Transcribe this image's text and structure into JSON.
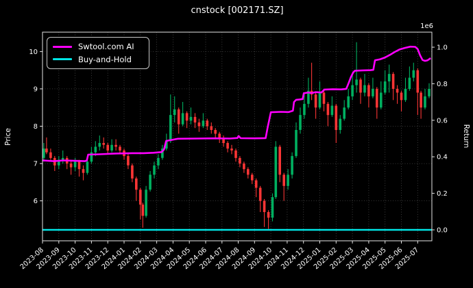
{
  "window": {
    "title": "cnstock [002171.SZ]"
  },
  "chart_data": {
    "type": "candlestick+line",
    "title": "cnstock [002171.SZ]",
    "grid": true,
    "background": "#000000",
    "left_axis": {
      "label": "Price",
      "ticks": [
        6,
        7,
        8,
        9,
        10
      ],
      "range": [
        4.93,
        10.52
      ]
    },
    "right_axis": {
      "label": "Return",
      "ticks": [
        "0.0",
        "0.2",
        "0.4",
        "0.6",
        "0.8",
        "1.0"
      ],
      "multiplier": "1e6",
      "range": [
        -0.0599,
        1.0824
      ]
    },
    "x_axis": {
      "range": [
        0,
        23.87
      ],
      "tick_labels": [
        "2023-08",
        "2023-09",
        "2023-10",
        "2023-11",
        "2023-12",
        "2024-01",
        "2024-02",
        "2024-03",
        "2024-04",
        "2024-05",
        "2024-06",
        "2024-07",
        "2024-08",
        "2024-09",
        "2024-10",
        "2024-11",
        "2024-12",
        "2025-01",
        "2025-02",
        "2025-03",
        "2025-04",
        "2025-05",
        "2025-06",
        "2025-07"
      ]
    },
    "legend": {
      "position": "upper-left",
      "items": [
        {
          "label": "Swtool.com AI",
          "color": "#ff00ff"
        },
        {
          "label": "Buy-and-Hold",
          "color": "#00e6e6"
        }
      ]
    },
    "colors": {
      "up_candle": "#00b060",
      "down_candle": "#fb3535",
      "ai_line": "#ff00ff",
      "bh_line": "#00e6e6",
      "grid": "#4a4a4a",
      "spine": "#e6e6e6",
      "text": "#ffffff"
    },
    "candles": [
      [
        0.08,
        7.15,
        7.55,
        7.05,
        7.4
      ],
      [
        0.25,
        7.4,
        7.7,
        7.25,
        7.3
      ],
      [
        0.5,
        7.3,
        7.4,
        7.1,
        7.15
      ],
      [
        0.75,
        7.15,
        7.2,
        6.8,
        6.95
      ],
      [
        1.0,
        6.95,
        7.2,
        6.85,
        7.1
      ],
      [
        1.25,
        7.1,
        7.35,
        7.0,
        7.15
      ],
      [
        1.5,
        7.15,
        7.2,
        6.85,
        7.0
      ],
      [
        1.75,
        7.0,
        7.1,
        6.7,
        6.9
      ],
      [
        2.0,
        6.9,
        7.15,
        6.8,
        7.05
      ],
      [
        2.25,
        7.05,
        7.1,
        6.65,
        6.85
      ],
      [
        2.5,
        6.85,
        6.95,
        6.55,
        6.75
      ],
      [
        2.75,
        6.75,
        7.1,
        6.7,
        7.05
      ],
      [
        3.0,
        7.05,
        7.45,
        7.0,
        7.3
      ],
      [
        3.25,
        7.3,
        7.6,
        7.2,
        7.45
      ],
      [
        3.5,
        7.45,
        7.75,
        7.35,
        7.55
      ],
      [
        3.75,
        7.55,
        7.7,
        7.4,
        7.5
      ],
      [
        4.0,
        7.5,
        7.55,
        7.25,
        7.35
      ],
      [
        4.25,
        7.35,
        7.65,
        7.3,
        7.5
      ],
      [
        4.5,
        7.5,
        7.65,
        7.35,
        7.45
      ],
      [
        4.75,
        7.45,
        7.5,
        7.25,
        7.35
      ],
      [
        5.0,
        7.35,
        7.4,
        7.1,
        7.2
      ],
      [
        5.25,
        7.2,
        7.25,
        6.85,
        6.95
      ],
      [
        5.5,
        6.95,
        7.0,
        6.5,
        6.6
      ],
      [
        5.75,
        6.6,
        6.65,
        6.0,
        6.3
      ],
      [
        6.0,
        6.3,
        6.35,
        5.5,
        5.9
      ],
      [
        6.15,
        5.9,
        5.95,
        5.28,
        5.6
      ],
      [
        6.35,
        5.6,
        6.4,
        5.55,
        6.3
      ],
      [
        6.6,
        6.3,
        6.8,
        6.25,
        6.7
      ],
      [
        6.85,
        6.7,
        7.05,
        6.6,
        6.95
      ],
      [
        7.1,
        6.95,
        7.25,
        6.85,
        7.15
      ],
      [
        7.35,
        7.15,
        7.5,
        7.1,
        7.4
      ],
      [
        7.6,
        7.4,
        7.8,
        7.35,
        7.6
      ],
      [
        7.85,
        7.6,
        8.85,
        7.55,
        8.3
      ],
      [
        8.1,
        8.3,
        8.8,
        8.1,
        8.45
      ],
      [
        8.35,
        8.45,
        8.5,
        7.8,
        8.05
      ],
      [
        8.6,
        8.05,
        8.65,
        8.0,
        8.35
      ],
      [
        8.85,
        8.35,
        8.4,
        7.95,
        8.15
      ],
      [
        9.1,
        8.15,
        8.5,
        8.05,
        8.25
      ],
      [
        9.35,
        8.25,
        8.35,
        7.95,
        8.1
      ],
      [
        9.6,
        8.1,
        8.2,
        7.85,
        8.0
      ],
      [
        9.85,
        8.0,
        8.35,
        7.95,
        8.15
      ],
      [
        10.1,
        8.15,
        8.2,
        7.9,
        8.0
      ],
      [
        10.35,
        8.0,
        8.1,
        7.8,
        7.9
      ],
      [
        10.6,
        7.9,
        7.95,
        7.65,
        7.8
      ],
      [
        10.85,
        7.8,
        7.85,
        7.55,
        7.65
      ],
      [
        11.1,
        7.65,
        7.75,
        7.45,
        7.55
      ],
      [
        11.35,
        7.55,
        7.6,
        7.3,
        7.4
      ],
      [
        11.6,
        7.4,
        7.5,
        7.25,
        7.35
      ],
      [
        11.85,
        7.35,
        7.4,
        7.05,
        7.15
      ],
      [
        12.1,
        7.15,
        7.2,
        6.9,
        7.0
      ],
      [
        12.35,
        7.0,
        7.05,
        6.75,
        6.85
      ],
      [
        12.6,
        6.85,
        6.9,
        6.6,
        6.7
      ],
      [
        12.85,
        6.7,
        6.75,
        6.45,
        6.55
      ],
      [
        13.1,
        6.55,
        6.6,
        6.1,
        6.35
      ],
      [
        13.35,
        6.35,
        6.4,
        5.7,
        6.0
      ],
      [
        13.6,
        6.0,
        6.05,
        5.3,
        5.7
      ],
      [
        13.85,
        5.7,
        5.75,
        5.25,
        5.55
      ],
      [
        14.1,
        5.55,
        6.2,
        5.45,
        6.1
      ],
      [
        14.3,
        6.1,
        7.6,
        6.05,
        7.45
      ],
      [
        14.55,
        7.45,
        7.5,
        6.5,
        6.7
      ],
      [
        14.8,
        6.7,
        6.75,
        6.0,
        6.4
      ],
      [
        15.05,
        6.4,
        6.85,
        6.3,
        6.7
      ],
      [
        15.3,
        6.7,
        7.3,
        6.6,
        7.2
      ],
      [
        15.55,
        7.2,
        8.1,
        7.15,
        7.9
      ],
      [
        15.8,
        7.9,
        8.5,
        7.8,
        8.3
      ],
      [
        16.05,
        8.3,
        8.9,
        8.2,
        8.6
      ],
      [
        16.3,
        8.6,
        9.3,
        8.5,
        8.95
      ],
      [
        16.5,
        8.95,
        9.7,
        8.7,
        8.85
      ],
      [
        16.75,
        8.85,
        8.9,
        8.2,
        8.5
      ],
      [
        17.0,
        8.5,
        9.2,
        8.45,
        8.9
      ],
      [
        17.25,
        8.9,
        8.95,
        8.4,
        8.6
      ],
      [
        17.5,
        8.6,
        8.65,
        8.0,
        8.3
      ],
      [
        17.75,
        8.3,
        8.8,
        8.25,
        8.55
      ],
      [
        18.0,
        8.55,
        8.6,
        7.55,
        7.9
      ],
      [
        18.25,
        7.9,
        8.3,
        7.8,
        8.2
      ],
      [
        18.5,
        8.2,
        8.7,
        8.15,
        8.5
      ],
      [
        18.75,
        8.5,
        9.0,
        8.45,
        8.8
      ],
      [
        19.0,
        8.8,
        9.4,
        8.7,
        9.1
      ],
      [
        19.25,
        9.1,
        10.25,
        8.9,
        9.25
      ],
      [
        19.5,
        9.25,
        9.3,
        8.6,
        8.9
      ],
      [
        19.75,
        8.9,
        9.4,
        8.8,
        9.1
      ],
      [
        20.0,
        9.1,
        9.15,
        8.5,
        8.8
      ],
      [
        20.25,
        8.8,
        9.3,
        8.75,
        9.0
      ],
      [
        20.5,
        9.0,
        9.05,
        8.2,
        8.5
      ],
      [
        20.75,
        8.5,
        9.2,
        8.45,
        8.9
      ],
      [
        21.0,
        8.9,
        9.5,
        8.85,
        9.2
      ],
      [
        21.25,
        9.2,
        9.65,
        8.9,
        9.4
      ],
      [
        21.5,
        9.4,
        9.45,
        8.7,
        9.0
      ],
      [
        21.75,
        9.0,
        9.1,
        8.6,
        8.9
      ],
      [
        22.0,
        8.9,
        8.95,
        8.4,
        8.7
      ],
      [
        22.25,
        8.7,
        9.3,
        8.65,
        9.0
      ],
      [
        22.5,
        9.0,
        9.6,
        8.95,
        9.3
      ],
      [
        22.75,
        9.3,
        9.7,
        9.2,
        9.5
      ],
      [
        23.0,
        9.5,
        9.55,
        8.3,
        8.9
      ],
      [
        23.2,
        8.9,
        8.95,
        8.2,
        8.5
      ],
      [
        23.45,
        8.5,
        9.0,
        8.45,
        8.8
      ],
      [
        23.7,
        8.8,
        9.15,
        8.75,
        9.0
      ]
    ],
    "series": [
      {
        "name": "Swtool.com AI",
        "color": "#ff00ff",
        "axis": "right",
        "points": [
          [
            0.0,
            0.38
          ],
          [
            0.7,
            0.376
          ],
          [
            1.3,
            0.38
          ],
          [
            2.0,
            0.378
          ],
          [
            2.6,
            0.376
          ],
          [
            2.72,
            0.38
          ],
          [
            2.8,
            0.412
          ],
          [
            3.5,
            0.414
          ],
          [
            4.5,
            0.418
          ],
          [
            5.5,
            0.42
          ],
          [
            6.2,
            0.42
          ],
          [
            6.8,
            0.422
          ],
          [
            7.3,
            0.426
          ],
          [
            7.45,
            0.44
          ],
          [
            7.58,
            0.487
          ],
          [
            7.9,
            0.492
          ],
          [
            8.3,
            0.499
          ],
          [
            9.5,
            0.5
          ],
          [
            10.5,
            0.501
          ],
          [
            11.5,
            0.5
          ],
          [
            11.95,
            0.503
          ],
          [
            12.02,
            0.514
          ],
          [
            12.15,
            0.502
          ],
          [
            13.0,
            0.501
          ],
          [
            13.68,
            0.502
          ],
          [
            13.8,
            0.56
          ],
          [
            14.0,
            0.644
          ],
          [
            14.6,
            0.646
          ],
          [
            15.1,
            0.645
          ],
          [
            15.35,
            0.652
          ],
          [
            15.42,
            0.7
          ],
          [
            15.55,
            0.712
          ],
          [
            15.75,
            0.714
          ],
          [
            15.95,
            0.716
          ],
          [
            16.02,
            0.748
          ],
          [
            16.3,
            0.752
          ],
          [
            16.5,
            0.749
          ],
          [
            16.75,
            0.754
          ],
          [
            17.1,
            0.752
          ],
          [
            17.28,
            0.768
          ],
          [
            17.8,
            0.77
          ],
          [
            18.3,
            0.769
          ],
          [
            18.62,
            0.772
          ],
          [
            18.75,
            0.8
          ],
          [
            18.9,
            0.835
          ],
          [
            19.05,
            0.862
          ],
          [
            19.15,
            0.871
          ],
          [
            19.6,
            0.873
          ],
          [
            20.1,
            0.874
          ],
          [
            20.28,
            0.876
          ],
          [
            20.38,
            0.928
          ],
          [
            20.7,
            0.934
          ],
          [
            21.0,
            0.944
          ],
          [
            21.3,
            0.958
          ],
          [
            21.6,
            0.974
          ],
          [
            21.9,
            0.988
          ],
          [
            22.2,
            0.996
          ],
          [
            22.55,
            1.003
          ],
          [
            22.85,
            1.002
          ],
          [
            23.0,
            0.99
          ],
          [
            23.15,
            0.955
          ],
          [
            23.3,
            0.93
          ],
          [
            23.45,
            0.925
          ],
          [
            23.6,
            0.928
          ],
          [
            23.8,
            0.94
          ]
        ]
      },
      {
        "name": "Buy-and-Hold",
        "color": "#00e6e6",
        "axis": "right",
        "points": [
          [
            0.0,
            0.0
          ],
          [
            23.85,
            0.0
          ]
        ]
      }
    ]
  }
}
